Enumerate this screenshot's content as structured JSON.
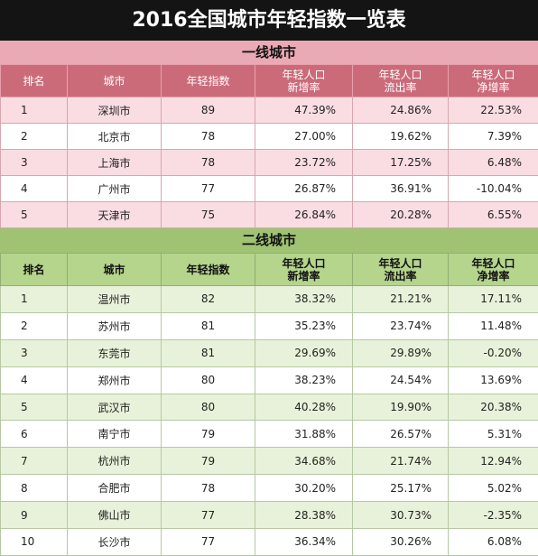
{
  "title": "2016全国城市年轻指数一览表",
  "sections": [
    {
      "key": "tier1",
      "title": "一线城市",
      "headers": [
        "排名",
        "城市",
        "年轻指数",
        "年轻人口\n新增率",
        "年轻人口\n流出率",
        "年轻人口\n净增率"
      ],
      "rows": [
        [
          "1",
          "深圳市",
          "89",
          "47.39%",
          "24.86%",
          "22.53%"
        ],
        [
          "2",
          "北京市",
          "78",
          "27.00%",
          "19.62%",
          "7.39%"
        ],
        [
          "3",
          "上海市",
          "78",
          "23.72%",
          "17.25%",
          "6.48%"
        ],
        [
          "4",
          "广州市",
          "77",
          "26.87%",
          "36.91%",
          "-10.04%"
        ],
        [
          "5",
          "天津市",
          "75",
          "26.84%",
          "20.28%",
          "6.55%"
        ]
      ]
    },
    {
      "key": "tier2",
      "title": "二线城市",
      "headers": [
        "排名",
        "城市",
        "年轻指数",
        "年轻人口\n新增率",
        "年轻人口\n流出率",
        "年轻人口\n净增率"
      ],
      "rows": [
        [
          "1",
          "温州市",
          "82",
          "38.32%",
          "21.21%",
          "17.11%"
        ],
        [
          "2",
          "苏州市",
          "81",
          "35.23%",
          "23.74%",
          "11.48%"
        ],
        [
          "3",
          "东莞市",
          "81",
          "29.69%",
          "29.89%",
          "-0.20%"
        ],
        [
          "4",
          "郑州市",
          "80",
          "38.23%",
          "24.54%",
          "13.69%"
        ],
        [
          "5",
          "武汉市",
          "80",
          "40.28%",
          "19.90%",
          "20.38%"
        ],
        [
          "6",
          "南宁市",
          "79",
          "31.88%",
          "26.57%",
          "5.31%"
        ],
        [
          "7",
          "杭州市",
          "79",
          "34.68%",
          "21.74%",
          "12.94%"
        ],
        [
          "8",
          "合肥市",
          "78",
          "30.20%",
          "25.17%",
          "5.02%"
        ],
        [
          "9",
          "佛山市",
          "77",
          "28.38%",
          "30.73%",
          "-2.35%"
        ],
        [
          "10",
          "长沙市",
          "77",
          "36.34%",
          "30.26%",
          "6.08%"
        ]
      ]
    }
  ]
}
